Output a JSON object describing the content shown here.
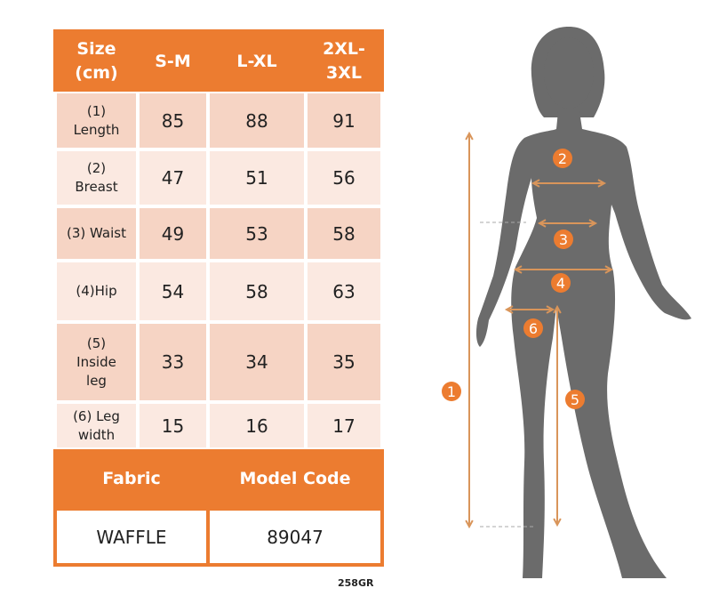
{
  "table": {
    "header": [
      "Size\n(cm)",
      "S-M",
      "L-XL",
      "2XL-\n3XL"
    ],
    "rows": [
      {
        "label": "(1)\nLength",
        "values": [
          "85",
          "88",
          "91"
        ]
      },
      {
        "label": "(2)\nBreast",
        "values": [
          "47",
          "51",
          "56"
        ]
      },
      {
        "label": "(3) Waist",
        "values": [
          "49",
          "53",
          "58"
        ]
      },
      {
        "label": "(4)Hip",
        "values": [
          "54",
          "58",
          "63"
        ]
      },
      {
        "label": "(5)\nInside\nleg",
        "values": [
          "33",
          "34",
          "35"
        ]
      },
      {
        "label": "(6) Leg\nwidth",
        "values": [
          "15",
          "16",
          "17"
        ]
      }
    ],
    "fabric_header": "Fabric",
    "model_code_header": "Model Code",
    "fabric_value": "WAFFLE",
    "model_code_value": "89047"
  },
  "footer_code": "258GR",
  "figure": {
    "markers": [
      "1",
      "2",
      "3",
      "4",
      "5",
      "6"
    ]
  },
  "colors": {
    "accent": "#ec7c30",
    "silhouette": "#6b6b6b",
    "arrow": "#d9955a"
  }
}
